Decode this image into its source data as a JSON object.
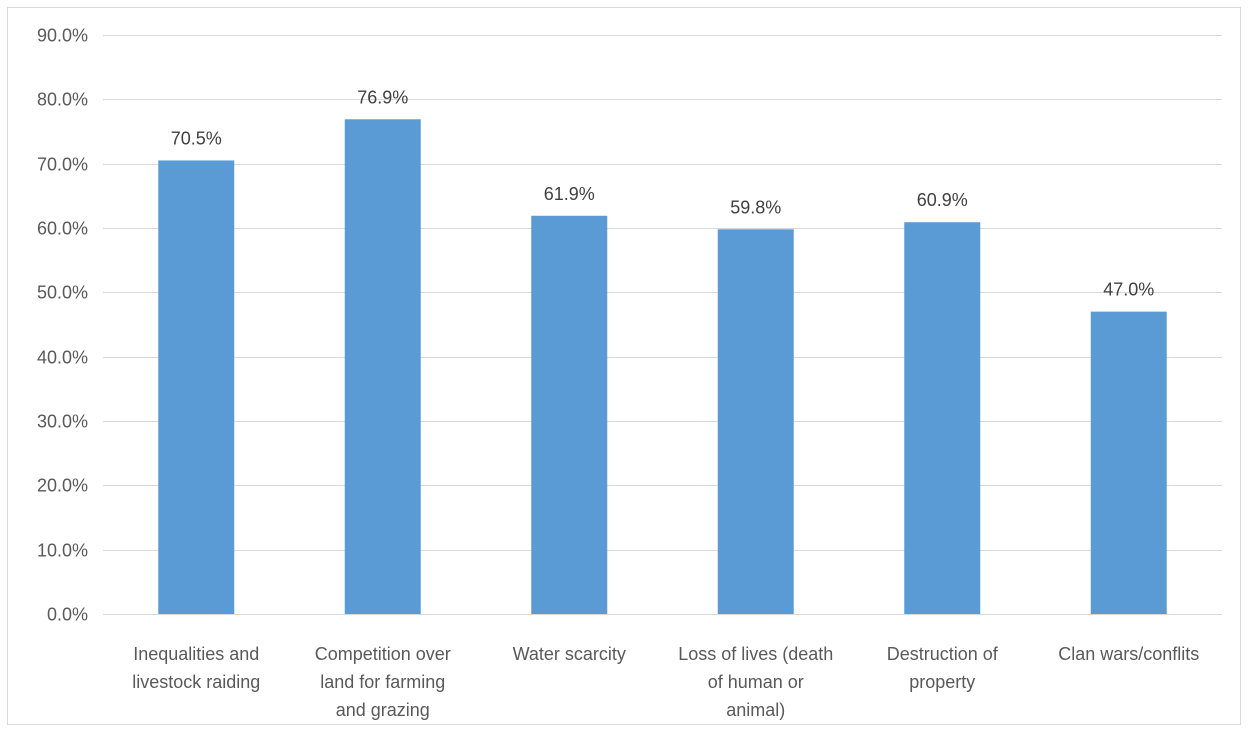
{
  "chart_data": {
    "type": "bar",
    "title": "",
    "xlabel": "",
    "ylabel": "",
    "categories": [
      [
        "Inequalities and",
        "livestock raiding"
      ],
      [
        "Competition over",
        "land for farming",
        "and grazing"
      ],
      [
        "Water scarcity"
      ],
      [
        "Loss of lives (death",
        "of human or",
        "animal)"
      ],
      [
        "Destruction of",
        "property"
      ],
      [
        "Clan wars/conflits"
      ]
    ],
    "values": [
      70.5,
      76.9,
      61.9,
      59.8,
      60.9,
      47.0
    ],
    "data_labels": [
      "70.5%",
      "76.9%",
      "61.9%",
      "59.8%",
      "60.9%",
      "47.0%"
    ],
    "ylim": [
      0,
      90
    ],
    "yticks": [
      0,
      10,
      20,
      30,
      40,
      50,
      60,
      70,
      80,
      90
    ],
    "ytick_labels": [
      "0.0%",
      "10.0%",
      "20.0%",
      "30.0%",
      "40.0%",
      "50.0%",
      "60.0%",
      "70.0%",
      "80.0%",
      "90.0%"
    ],
    "grid": true,
    "legend": "none",
    "colors": {
      "bar": "#5b9bd5",
      "grid": "#d9d9d9",
      "axis_text": "#595959",
      "data_label_text": "#404040"
    }
  }
}
